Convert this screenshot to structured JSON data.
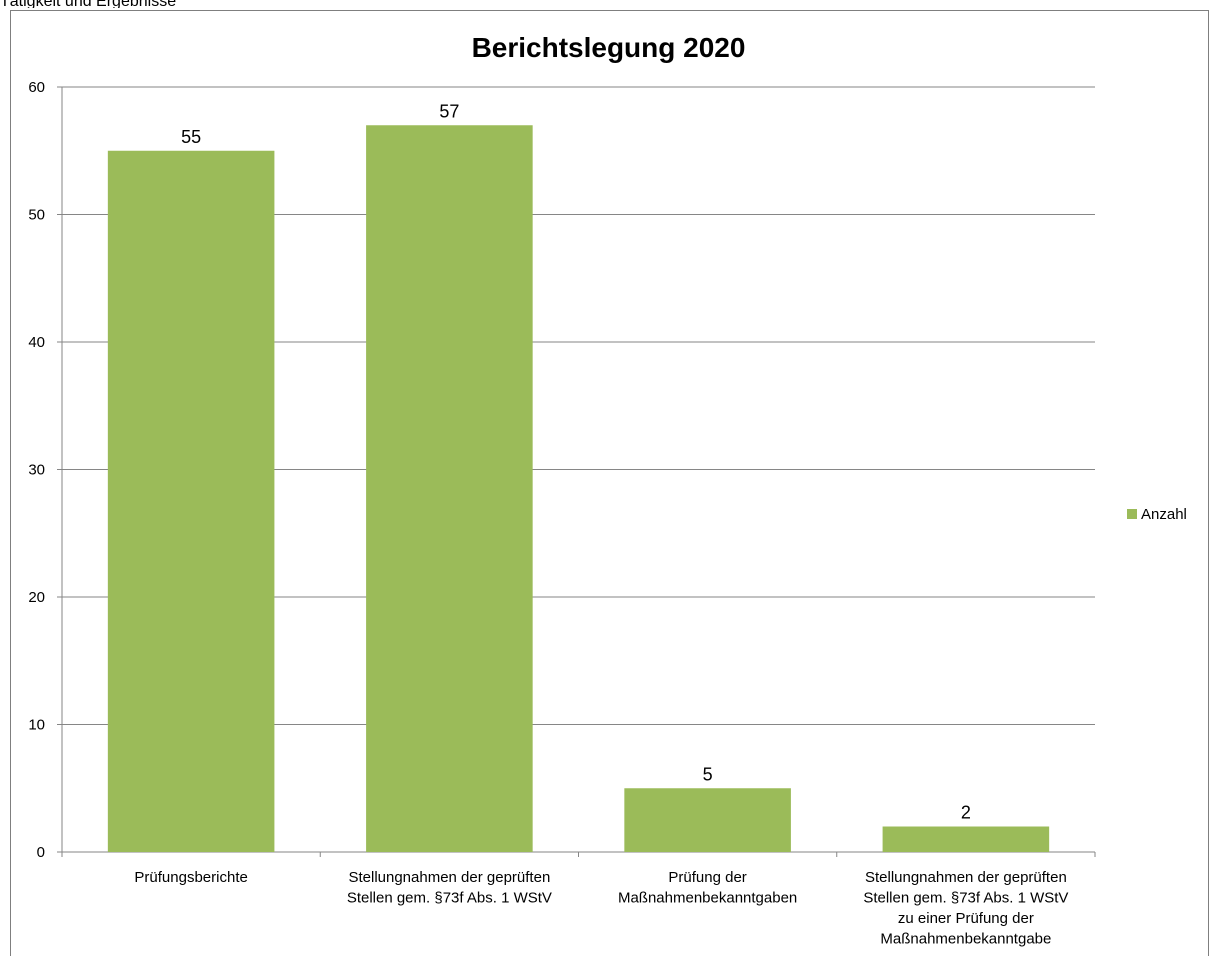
{
  "header": {
    "text": "Tätigkeit und Ergebnisse"
  },
  "chart_data": {
    "type": "bar",
    "title": "Berichtslegung 2020",
    "categories": [
      [
        "Prüfungsberichte"
      ],
      [
        "Stellungnahmen der geprüften",
        "Stellen gem. §73f Abs. 1 WStV"
      ],
      [
        "Prüfung der",
        "Maßnahmenbekanntgaben"
      ],
      [
        "Stellungnahmen der geprüften",
        "Stellen gem. §73f Abs. 1 WStV",
        "zu einer Prüfung der",
        "Maßnahmenbekanntgabe"
      ]
    ],
    "series": [
      {
        "name": "Anzahl",
        "values": [
          55,
          57,
          5,
          2
        ],
        "color": "#9bbb59"
      }
    ],
    "ylim": [
      0,
      60
    ],
    "yticks": [
      0,
      10,
      20,
      30,
      40,
      50,
      60
    ],
    "xlabel": "",
    "ylabel": "",
    "grid": true,
    "legend_position": "right"
  }
}
